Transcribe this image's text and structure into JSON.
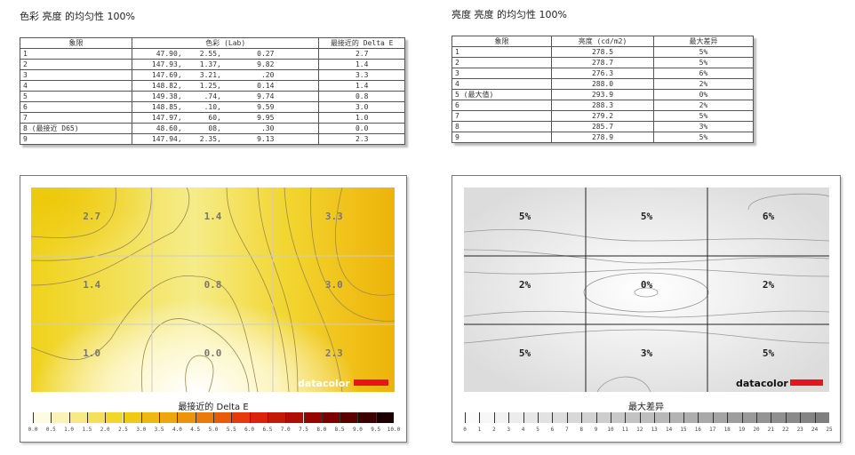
{
  "left": {
    "title": "色彩 亮度 的均匀性 100%",
    "headers": [
      "象限",
      "色彩 (Lab)",
      "最接近的 Delta E"
    ],
    "rows": [
      [
        "1",
        "47.90,",
        "2.55,",
        "0.27",
        "2.7"
      ],
      [
        "2",
        "147.93,",
        "1.37,",
        "9.82",
        "1.4"
      ],
      [
        "3",
        "147.69,",
        "3.21,",
        ".20",
        "3.3"
      ],
      [
        "4",
        "148.82,",
        "1.25,",
        "0.14",
        "1.4"
      ],
      [
        "5",
        "149.38,",
        ".74,",
        "9.74",
        "0.8"
      ],
      [
        "6",
        "148.85,",
        ".10,",
        "9.59",
        "3.0"
      ],
      [
        "7",
        "147.97,",
        "60,",
        "9.95",
        "1.0"
      ],
      [
        "8 (最接近 D65)",
        "48.60,",
        "08,",
        ".30",
        "0.0"
      ],
      [
        "9",
        "147.94,",
        "2.35,",
        "9.13",
        "2.3"
      ]
    ],
    "map_labels": [
      "2.7",
      "1.4",
      "3.3",
      "1.4",
      "0.8",
      "3.0",
      "1.0",
      "0.0",
      "2.3"
    ],
    "colorbar_title": "最接近的 Delta E",
    "colorbar_ticks": [
      "0.0",
      "0.5",
      "1.0",
      "1.5",
      "2.0",
      "2.5",
      "3.0",
      "3.5",
      "4.0",
      "4.5",
      "5.0",
      "5.5",
      "6.0",
      "6.5",
      "7.0",
      "7.5",
      "8.0",
      "8.5",
      "9.0",
      "9.5",
      "10.0"
    ],
    "logo": "datacolor"
  },
  "right": {
    "title": "亮度 亮度 的均匀性 100%",
    "headers": [
      "象限",
      "亮度 (cd/m2)",
      "最大差异"
    ],
    "rows": [
      [
        "1",
        "278.5",
        "5%"
      ],
      [
        "2",
        "278.7",
        "5%"
      ],
      [
        "3",
        "276.3",
        "6%"
      ],
      [
        "4",
        "288.0",
        "2%"
      ],
      [
        "5 (最大值)",
        "293.9",
        "0%"
      ],
      [
        "6",
        "288.3",
        "2%"
      ],
      [
        "7",
        "279.2",
        "5%"
      ],
      [
        "8",
        "285.7",
        "3%"
      ],
      [
        "9",
        "278.9",
        "5%"
      ]
    ],
    "map_labels": [
      "5%",
      "5%",
      "6%",
      "2%",
      "0%",
      "2%",
      "5%",
      "3%",
      "5%"
    ],
    "colorbar_title": "最大差异",
    "colorbar_ticks": [
      "0",
      "1",
      "2",
      "3",
      "4",
      "5",
      "6",
      "7",
      "8",
      "9",
      "10",
      "11",
      "12",
      "13",
      "14",
      "15",
      "16",
      "17",
      "18",
      "19",
      "20",
      "21",
      "22",
      "23",
      "24",
      "25"
    ],
    "logo": "datacolor"
  },
  "colors": {
    "logo_red": "#e8141c"
  }
}
